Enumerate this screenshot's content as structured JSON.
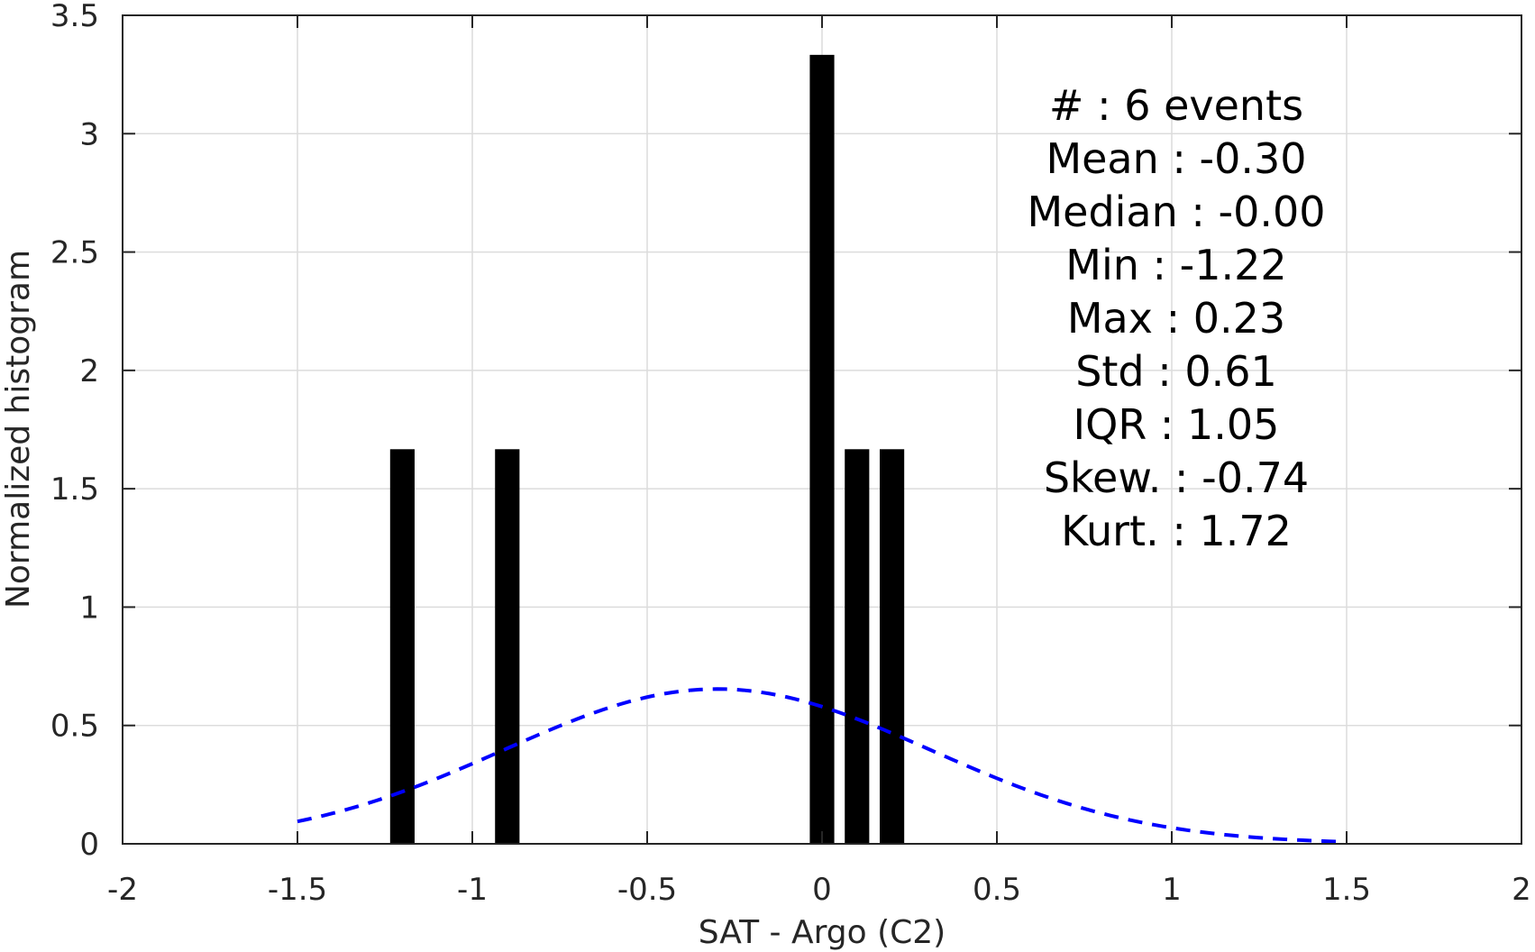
{
  "chart_data": {
    "type": "bar",
    "xlabel": "SAT - Argo (C2)",
    "ylabel": "Normalized histogram",
    "xlim": [
      -2,
      2
    ],
    "ylim": [
      0,
      3.5
    ],
    "grid": true,
    "x_ticks": [
      "-2",
      "-1.5",
      "-1",
      "-0.5",
      "0",
      "0.5",
      "1",
      "1.5",
      "2"
    ],
    "y_ticks": [
      "0",
      "0.5",
      "1",
      "1.5",
      "2",
      "2.5",
      "3",
      "3.5"
    ],
    "bar_color": "#000000",
    "bars": [
      {
        "x": -1.2,
        "value": 1.667
      },
      {
        "x": -0.9,
        "value": 1.667
      },
      {
        "x": 0.0,
        "value": 3.333
      },
      {
        "x": 0.1,
        "value": 1.667
      },
      {
        "x": 0.2,
        "value": 1.667
      }
    ],
    "fit_curve": {
      "style": "dashed",
      "color": "#0000ff",
      "mean": -0.3,
      "std": 0.61,
      "x_range": [
        -1.5,
        1.5
      ]
    },
    "stats": [
      {
        "label": "#  : 6 events"
      },
      {
        "label": "Mean : -0.30"
      },
      {
        "label": "Median : -0.00"
      },
      {
        "label": "Min : -1.22"
      },
      {
        "label": "Max : 0.23"
      },
      {
        "label": "Std : 0.61"
      },
      {
        "label": "IQR : 1.05"
      },
      {
        "label": "Skew. : -0.74"
      },
      {
        "label": "Kurt. : 1.72"
      }
    ]
  }
}
